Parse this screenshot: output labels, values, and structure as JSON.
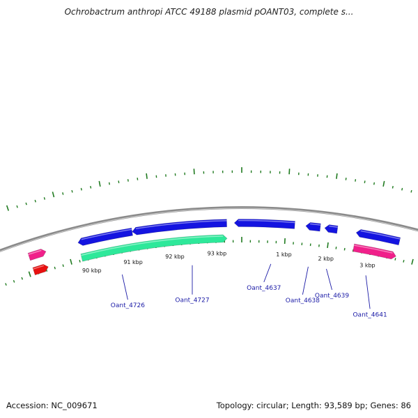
{
  "title": "Ochrobactrum anthropi ATCC 49188 plasmid pOANT03, complete s...",
  "footer": {
    "accession": "Accession: NC_009671",
    "summary": "Topology: circular; Length: 93,589 bp; Genes: 86"
  },
  "plasmid": {
    "length_bp": 93589,
    "topology": "circular"
  },
  "colors": {
    "backbone": "#8a8a8a",
    "tick": "#1f7a1f",
    "cds_blue": "#1414e0",
    "cds_green": "#2ee89a",
    "cds_pink": "#f0208a",
    "cds_red": "#e81010",
    "label": "#1a1aa6"
  },
  "scale_labels": [
    {
      "text": "90 kbp",
      "position_bp": 90000
    },
    {
      "text": "91 kbp",
      "position_bp": 91000
    },
    {
      "text": "92 kbp",
      "position_bp": 92000
    },
    {
      "text": "93 kbp",
      "position_bp": 93000
    },
    {
      "text": "1 kbp",
      "position_bp": 1000
    },
    {
      "text": "2 kbp",
      "position_bp": 2000
    },
    {
      "text": "3 kbp",
      "position_bp": 3000
    }
  ],
  "features": [
    {
      "strand": "+",
      "ring": "outer",
      "color": "cds_pink",
      "start_bp": 88700,
      "end_bp": 89100
    },
    {
      "strand": "+",
      "ring": "inner",
      "color": "cds_red",
      "start_bp": 88700,
      "end_bp": 89050
    },
    {
      "strand": "-",
      "ring": "outer",
      "color": "cds_blue",
      "start_bp": 89850,
      "end_bp": 91100
    },
    {
      "strand": "-",
      "ring": "outer",
      "color": "cds_blue",
      "start_bp": 91100,
      "end_bp": 93250
    },
    {
      "strand": "+",
      "ring": "inner",
      "color": "cds_green",
      "start_bp": 89850,
      "end_bp": 93250
    },
    {
      "strand": "-",
      "ring": "outer",
      "color": "cds_blue",
      "start_bp": 93420,
      "end_bp": 1200
    },
    {
      "strand": "-",
      "ring": "outer",
      "color": "cds_blue",
      "start_bp": 1450,
      "end_bp": 1780
    },
    {
      "strand": "-",
      "ring": "outer",
      "color": "cds_blue",
      "start_bp": 1880,
      "end_bp": 2170
    },
    {
      "strand": "-",
      "ring": "outer",
      "color": "cds_blue",
      "start_bp": 2600,
      "end_bp": 3600
    },
    {
      "strand": "+",
      "ring": "inner",
      "color": "cds_pink",
      "start_bp": 2600,
      "end_bp": 3600
    }
  ],
  "gene_labels": [
    {
      "name": "Oant_4726",
      "anchor_bp": 90700
    },
    {
      "name": "Oant_4727",
      "anchor_bp": 92400
    },
    {
      "name": "Oant_4637",
      "anchor_bp": 700
    },
    {
      "name": "Oant_4638",
      "anchor_bp": 1600
    },
    {
      "name": "Oant_4639",
      "anchor_bp": 2040
    },
    {
      "name": "Oant_4641",
      "anchor_bp": 3000
    }
  ]
}
